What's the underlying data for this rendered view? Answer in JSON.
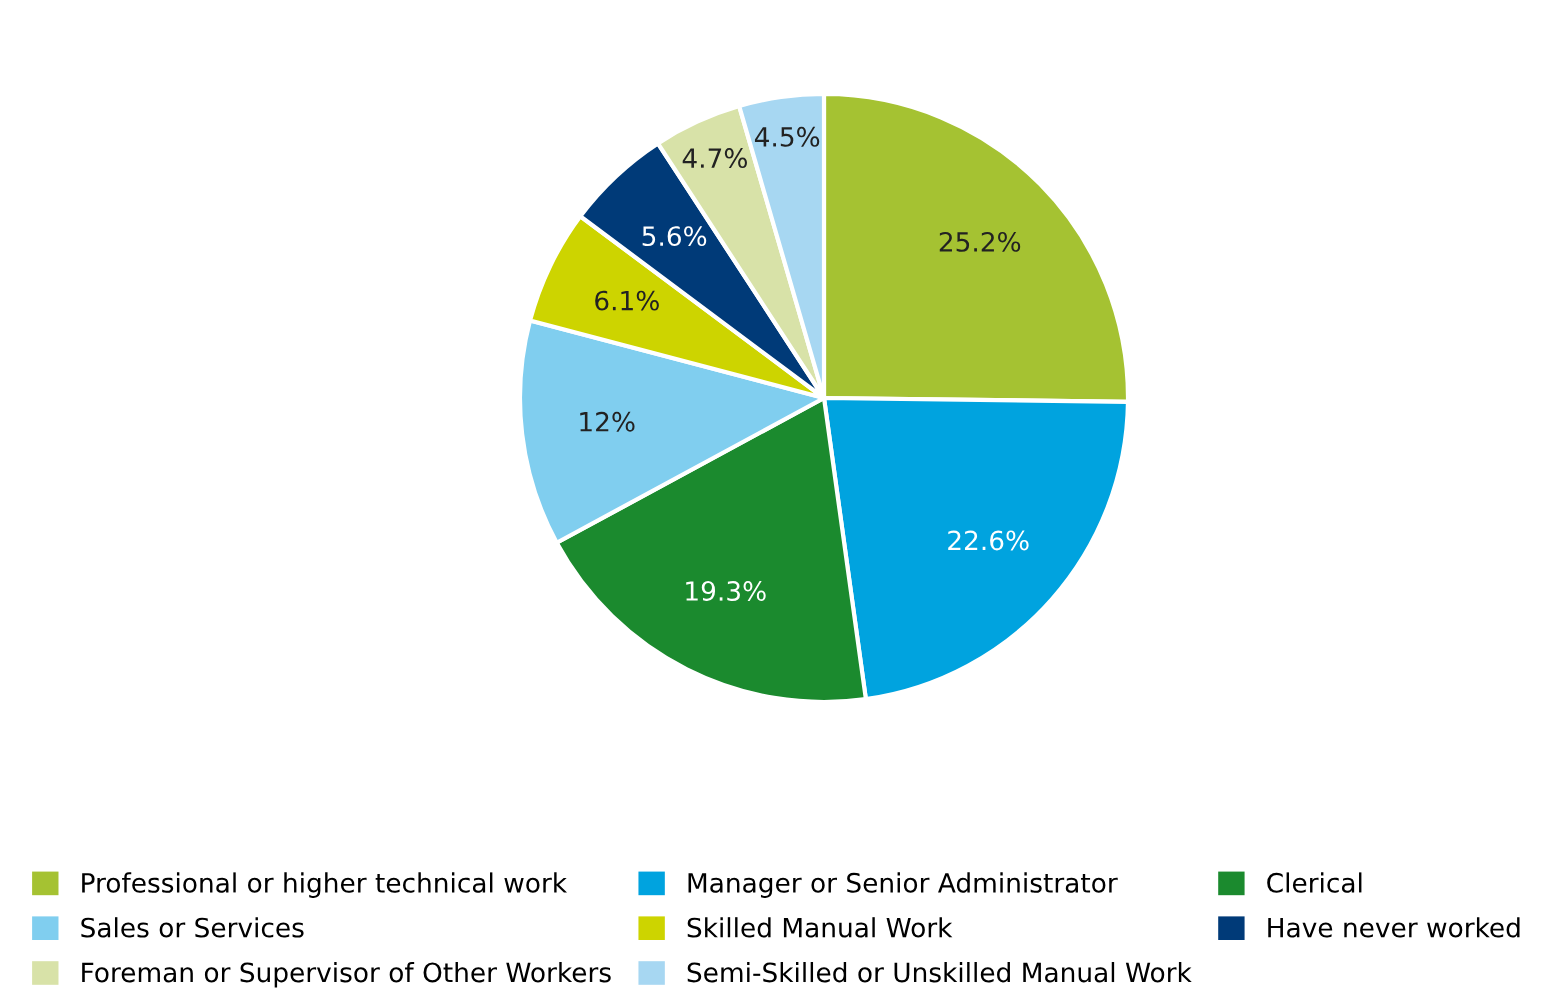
{
  "chart_data": {
    "type": "pie",
    "categories": [
      "Professional or higher technical work",
      "Manager or Senior Administrator",
      "Clerical",
      "Sales or Services",
      "Skilled Manual Work",
      "Have never worked",
      "Foreman or Supervisor of Other Workers",
      "Semi-Skilled or Unskilled Manual Work"
    ],
    "values": [
      25.2,
      22.6,
      19.3,
      12,
      6.1,
      5.6,
      4.7,
      4.5
    ],
    "value_labels": [
      "25.2%",
      "22.6%",
      "19.3%",
      "12%",
      "6.1%",
      "5.6%",
      "4.7%",
      "4.5%"
    ],
    "colors": [
      "#a5c232",
      "#00a3df",
      "#1b8a2e",
      "#80ceef",
      "#cdd400",
      "#003a78",
      "#d8e2a8",
      "#a7d7f2"
    ],
    "legend": "bottom"
  }
}
